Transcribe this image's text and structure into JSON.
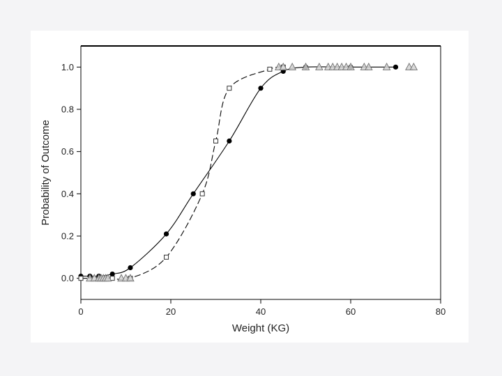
{
  "chart_data": {
    "type": "scatter",
    "title": "",
    "xlabel": "Weight (KG)",
    "ylabel": "Probability of Outcome",
    "xlim": [
      0,
      80
    ],
    "ylim": [
      -0.1,
      1.1
    ],
    "x_ticks": [
      0,
      20,
      40,
      60,
      80
    ],
    "y_ticks": [
      0.0,
      0.2,
      0.4,
      0.6,
      0.8,
      1.0
    ],
    "x_tick_labels": [
      "0",
      "20",
      "40",
      "60",
      "80"
    ],
    "y_tick_labels": [
      "0.0",
      "0.2",
      "0.4",
      "0.6",
      "0.8",
      "1.0"
    ],
    "grid": false,
    "legend": "none",
    "series": [
      {
        "marker": "filled-circle",
        "line": "solid",
        "color": "#000000",
        "x": [
          0,
          2,
          4,
          7,
          11,
          19,
          25,
          33,
          40,
          45,
          50,
          60,
          70
        ],
        "y": [
          0.01,
          0.01,
          0.01,
          0.02,
          0.05,
          0.21,
          0.4,
          0.65,
          0.9,
          0.98,
          1.0,
          1.0,
          1.0
        ]
      },
      {
        "marker": "open-square",
        "line": "dashed",
        "color": "#555555",
        "x": [
          0,
          3,
          5,
          7,
          11,
          19,
          27,
          30,
          33,
          42,
          45
        ],
        "y": [
          0.0,
          0.0,
          0.0,
          0.0,
          0.0,
          0.1,
          0.4,
          0.65,
          0.9,
          0.99,
          1.0
        ]
      },
      {
        "marker": "open-triangle",
        "line": "none",
        "color": "#888888",
        "x": [
          2,
          3,
          4,
          4.5,
          5,
          5.5,
          6,
          9,
          10,
          11,
          44,
          45,
          47,
          50,
          53,
          55,
          56,
          57,
          58,
          59,
          60,
          63,
          64,
          68,
          73,
          74
        ],
        "y": [
          0,
          0,
          0,
          0,
          0,
          0,
          0,
          0,
          0,
          0,
          1,
          1,
          1,
          1,
          1,
          1,
          1,
          1,
          1,
          1,
          1,
          1,
          1,
          1,
          1,
          1
        ]
      }
    ]
  }
}
